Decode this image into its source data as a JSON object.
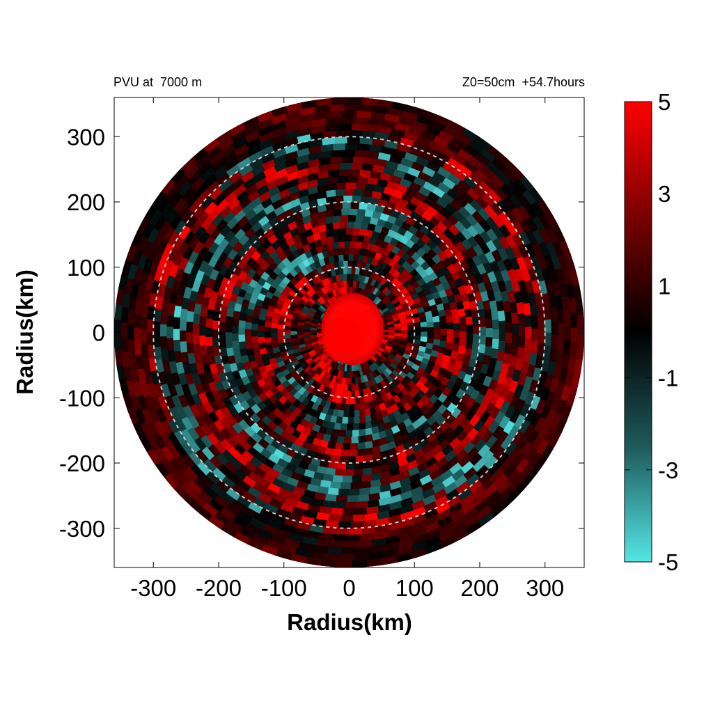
{
  "chart_data": {
    "type": "heatmap",
    "title_left": "PVU at  7000 m",
    "title_right": "Z0=50cm  +54.7hours",
    "xlabel": "Radius(km)",
    "ylabel": "Radius(km)",
    "xlim": [
      -360,
      360
    ],
    "ylim": [
      -360,
      360
    ],
    "x_ticks": [
      -300,
      -200,
      -100,
      0,
      100,
      200,
      300
    ],
    "y_ticks": [
      300,
      200,
      100,
      0,
      -100,
      -200,
      -300
    ],
    "domain_radius_km": 360,
    "reference_circles_km": [
      100,
      200,
      300
    ],
    "colorbar": {
      "range": [
        -5,
        5
      ],
      "tick_labels": [
        "5",
        "3",
        "1",
        "-1",
        "-3",
        "-5"
      ],
      "tick_values": [
        5,
        3,
        1,
        -1,
        -3,
        -5
      ],
      "colors": {
        "max": "#ff0000",
        "mid_high": "#7a0000",
        "zero": "#000000",
        "mid_low": "#1e5a5a",
        "min": "#55e6e6"
      }
    },
    "field_description": "Red core (>5 PVU) within ~50 km radius; surrounding spiral bands of mixed positive (red) and negative (cyan) PV out to 360 km."
  },
  "colors": {
    "axis": "#000000",
    "circle": "#cccccc",
    "background": "#ffffff"
  }
}
